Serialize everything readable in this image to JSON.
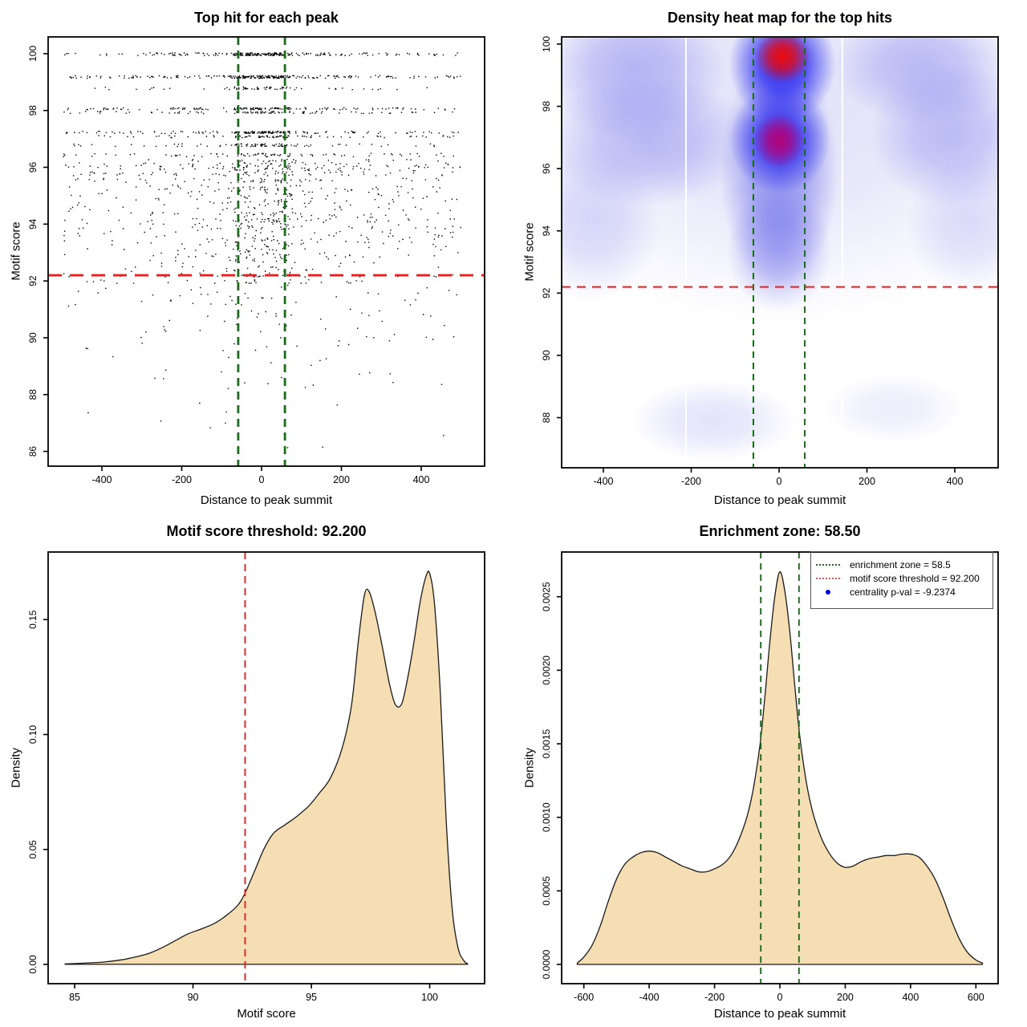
{
  "colors": {
    "background": "#ffffff",
    "point_black": "#000000",
    "threshold_red": "#e62020",
    "zone_green": "#1a6b1a",
    "density_fill_wheat": "#f5deb3",
    "curve_stroke": "#1a1a1a",
    "legend_blue": "#0000ee",
    "legend_red_dotted": "#ee5555"
  },
  "chart_data": [
    {
      "id": "top-hits-scatter",
      "type": "scatter",
      "title": "Top hit for each peak",
      "xlabel": "Distance to peak summit",
      "ylabel": "Motif score",
      "xlim": [
        -534.7,
        558.8
      ],
      "ylim": [
        85.48,
        100.59
      ],
      "xticks": [
        -400,
        -200,
        0,
        200,
        400
      ],
      "yticks": [
        86,
        88,
        90,
        92,
        94,
        96,
        98,
        100
      ],
      "grid": false,
      "motif_score_threshold": 92.2,
      "enrichment_zone": 58.5,
      "zone_line_values": [
        -58.5,
        58.5
      ],
      "point_seed": 20240817,
      "x_range_points": [
        -498,
        498
      ],
      "bands_note": "each band = [motif_score, n_points, center_fraction, y_jitter]",
      "bands": [
        [
          100,
          260,
          0.38,
          0.05
        ],
        [
          99.2,
          245,
          0.36,
          0.05
        ],
        [
          98.8,
          70,
          0.4,
          0.05
        ],
        [
          98.08,
          150,
          0.3,
          0.04
        ],
        [
          97.95,
          95,
          0.25,
          0.04
        ],
        [
          97.25,
          165,
          0.32,
          0.04
        ],
        [
          97.1,
          85,
          0.28,
          0.04
        ],
        [
          96.8,
          95,
          0.33,
          0.05
        ],
        [
          96.45,
          85,
          0.33,
          0.06
        ],
        [
          96.2,
          60,
          0.25,
          0.1
        ],
        [
          96.0,
          95,
          0.25,
          0.1
        ],
        [
          95.8,
          65,
          0.2,
          0.08
        ],
        [
          95.55,
          55,
          0.3,
          0.08
        ],
        [
          95.3,
          48,
          0.25,
          0.1
        ],
        [
          95.1,
          45,
          0.2,
          0.12
        ],
        [
          94.85,
          45,
          0.2,
          0.1
        ],
        [
          94.6,
          42,
          0.2,
          0.14
        ],
        [
          94.35,
          45,
          0.25,
          0.1
        ],
        [
          94.15,
          55,
          0.3,
          0.07
        ],
        [
          93.95,
          42,
          0.2,
          0.1
        ],
        [
          93.75,
          36,
          0.15,
          0.14
        ],
        [
          93.5,
          45,
          0.2,
          0.12
        ],
        [
          93.25,
          40,
          0.2,
          0.14
        ],
        [
          93.0,
          36,
          0.15,
          0.14
        ],
        [
          92.8,
          30,
          0.2,
          0.14
        ],
        [
          92.55,
          22,
          0.15,
          0.14
        ],
        [
          92.35,
          18,
          0.1,
          0.1
        ],
        [
          92.2,
          30,
          0.15,
          0.04
        ],
        [
          92.0,
          26,
          0.15,
          0.07
        ],
        [
          91.8,
          14,
          0.1,
          0.28
        ],
        [
          91.55,
          13,
          0.1,
          0.28
        ],
        [
          91.3,
          12,
          0.1,
          0.28
        ],
        [
          91.05,
          11,
          0.1,
          0.28
        ],
        [
          90.8,
          10,
          0.1,
          0.28
        ],
        [
          90.55,
          9,
          0.1,
          0.28
        ],
        [
          90.3,
          8,
          0.08,
          0.28
        ],
        [
          90.05,
          8,
          0.05,
          0.28
        ],
        [
          89.8,
          7,
          0.05,
          0.3
        ],
        [
          89.5,
          6,
          0.05,
          0.32
        ],
        [
          89.2,
          6,
          0.05,
          0.32
        ],
        [
          88.9,
          5,
          0.05,
          0.32
        ],
        [
          88.6,
          4,
          0.05,
          0.32
        ],
        [
          88.3,
          4,
          0.05,
          0.32
        ],
        [
          88.0,
          3,
          0,
          0.35
        ],
        [
          87.6,
          2,
          0,
          0.35
        ],
        [
          87.2,
          2,
          0,
          0.4
        ],
        [
          86.8,
          2,
          0,
          0.35
        ],
        [
          86.3,
          1,
          0,
          0.25
        ],
        [
          86.0,
          1,
          0,
          0.2
        ]
      ]
    },
    {
      "id": "density-heatmap",
      "type": "heatmap",
      "title": "Density heat map for the top hits",
      "xlabel": "Distance to peak summit",
      "ylabel": "Motif score",
      "xlim": [
        -495,
        498.6
      ],
      "ylim": [
        86.39,
        100.23
      ],
      "xticks": [
        -400,
        -200,
        0,
        200,
        400
      ],
      "yticks": [
        88,
        90,
        92,
        94,
        96,
        98,
        100
      ],
      "motif_score_threshold": 92.2,
      "zone_line_values": [
        -58.5,
        58.5
      ],
      "white_artifact_lines_x": [
        -212,
        144
      ],
      "blob_note": "each blob = [x, y, rx_data_units, ry_data_units, hex, alpha]",
      "washes": [
        [
          0,
          98,
          700,
          7,
          "#c3c3f3",
          0.5
        ],
        [
          -330,
          99.2,
          210,
          2.3,
          "#8787ee",
          0.55
        ],
        [
          -300,
          96.9,
          240,
          2.1,
          "#8787ee",
          0.5
        ],
        [
          330,
          99.3,
          210,
          1.9,
          "#8787ee",
          0.5
        ],
        [
          395,
          97.1,
          190,
          2.3,
          "#8787ee",
          0.5
        ],
        [
          -430,
          94.3,
          160,
          2.6,
          "#9696f0",
          0.35
        ],
        [
          440,
          94.2,
          150,
          2.3,
          "#9696f0",
          0.3
        ],
        [
          -150,
          87.9,
          190,
          1.3,
          "#a0a0f2",
          0.3
        ],
        [
          260,
          88.3,
          160,
          1.1,
          "#aaaaf4",
          0.22
        ],
        [
          0,
          93.4,
          120,
          2.0,
          "#6e6eeb",
          0.45
        ],
        [
          0,
          95.9,
          135,
          3.8,
          "#5555e8",
          0.6
        ]
      ],
      "hotspots": [
        [
          8,
          99.35,
          122,
          1.9,
          "#2323f0",
          0.97
        ],
        [
          2,
          96.95,
          115,
          1.75,
          "#2d2df0",
          0.92
        ],
        [
          0,
          96.9,
          57,
          0.88,
          "#b90073",
          0.95
        ],
        [
          8,
          99.6,
          62,
          0.85,
          "#ee0a0a",
          1
        ]
      ]
    },
    {
      "id": "motif-score-density",
      "type": "density",
      "title": "Motif score threshold: 92.200",
      "xlabel": "Motif score",
      "ylabel": "Density",
      "xlim": [
        83.88,
        102.32
      ],
      "ylim": [
        -0.0084,
        0.1794
      ],
      "xticks": [
        85,
        90,
        95,
        100
      ],
      "ytick_values": [
        0,
        0.05,
        0.1,
        0.15
      ],
      "ytick_labels": [
        "0.00",
        "0.05",
        "0.10",
        "0.15"
      ],
      "threshold_line_value": 92.2,
      "threshold_line_orient": "vertical",
      "curve": [
        [
          84.6,
          0.0002
        ],
        [
          85.3,
          0.0005
        ],
        [
          86.2,
          0.001
        ],
        [
          87.0,
          0.002
        ],
        [
          87.6,
          0.0033
        ],
        [
          88.2,
          0.005
        ],
        [
          88.8,
          0.0078
        ],
        [
          89.3,
          0.0106
        ],
        [
          89.8,
          0.0133
        ],
        [
          90.3,
          0.0152
        ],
        [
          90.9,
          0.0178
        ],
        [
          91.4,
          0.0212
        ],
        [
          91.9,
          0.0258
        ],
        [
          92.2,
          0.031
        ],
        [
          92.6,
          0.0405
        ],
        [
          93.0,
          0.0502
        ],
        [
          93.4,
          0.057
        ],
        [
          93.9,
          0.0608
        ],
        [
          94.4,
          0.0645
        ],
        [
          94.9,
          0.069
        ],
        [
          95.3,
          0.074
        ],
        [
          95.8,
          0.081
        ],
        [
          96.3,
          0.094
        ],
        [
          96.7,
          0.113
        ],
        [
          97.0,
          0.142
        ],
        [
          97.25,
          0.161
        ],
        [
          97.45,
          0.162
        ],
        [
          97.7,
          0.153
        ],
        [
          98.0,
          0.138
        ],
        [
          98.3,
          0.122
        ],
        [
          98.55,
          0.113
        ],
        [
          98.8,
          0.113
        ],
        [
          99.0,
          0.121
        ],
        [
          99.3,
          0.138
        ],
        [
          99.6,
          0.158
        ],
        [
          99.85,
          0.169
        ],
        [
          100.0,
          0.17
        ],
        [
          100.2,
          0.157
        ],
        [
          100.45,
          0.118
        ],
        [
          100.7,
          0.062
        ],
        [
          100.95,
          0.024
        ],
        [
          101.2,
          0.007
        ],
        [
          101.45,
          0.0015
        ],
        [
          101.6,
          0.0003
        ]
      ]
    },
    {
      "id": "summit-distance-density",
      "type": "density",
      "title": "Enrichment zone: 58.50",
      "xlabel": "Distance to peak summit",
      "ylabel": "Density",
      "xlim": [
        -668,
        668
      ],
      "ylim": [
        -0.000131,
        0.002804
      ],
      "xticks": [
        -600,
        -400,
        -200,
        0,
        200,
        400,
        600
      ],
      "ytick_values": [
        0,
        0.0005,
        0.001,
        0.0015,
        0.002,
        0.0025
      ],
      "ytick_labels": [
        "0.0000",
        "0.0005",
        "0.0010",
        "0.0015",
        "0.0020",
        "0.0025"
      ],
      "zone_line_values": [
        -58.5,
        58.5
      ],
      "legend": [
        {
          "label": "enrichment zone = 58.5",
          "glyph": "dotted-line-green",
          "color": "#1a6b1a"
        },
        {
          "label": "motif score threshold = 92.200",
          "glyph": "dotted-line-red",
          "color": "#ee5555"
        },
        {
          "label": "centrality p-val = -9.2374",
          "glyph": "blue-dot",
          "color": "#0000ee"
        }
      ],
      "curve": [
        [
          -620,
          1e-05
        ],
        [
          -600,
          5e-05
        ],
        [
          -575,
          0.00013
        ],
        [
          -550,
          0.00026
        ],
        [
          -525,
          0.00043
        ],
        [
          -500,
          0.00058
        ],
        [
          -475,
          0.00068
        ],
        [
          -450,
          0.00073
        ],
        [
          -425,
          0.00076
        ],
        [
          -400,
          0.00077
        ],
        [
          -375,
          0.00076
        ],
        [
          -350,
          0.00073
        ],
        [
          -325,
          0.0007
        ],
        [
          -300,
          0.00067
        ],
        [
          -275,
          0.00065
        ],
        [
          -250,
          0.00063
        ],
        [
          -225,
          0.00063
        ],
        [
          -200,
          0.00065
        ],
        [
          -175,
          0.00068
        ],
        [
          -150,
          0.00074
        ],
        [
          -125,
          0.00085
        ],
        [
          -100,
          0.00101
        ],
        [
          -80,
          0.00121
        ],
        [
          -60,
          0.00151
        ],
        [
          -45,
          0.00184
        ],
        [
          -30,
          0.00221
        ],
        [
          -15,
          0.00251
        ],
        [
          0,
          0.00267
        ],
        [
          15,
          0.00254
        ],
        [
          30,
          0.00227
        ],
        [
          45,
          0.00191
        ],
        [
          60,
          0.00157
        ],
        [
          80,
          0.00125
        ],
        [
          100,
          0.00104
        ],
        [
          125,
          0.00087
        ],
        [
          150,
          0.00076
        ],
        [
          175,
          0.00069
        ],
        [
          200,
          0.00066
        ],
        [
          225,
          0.00067
        ],
        [
          250,
          0.0007
        ],
        [
          275,
          0.00072
        ],
        [
          300,
          0.00073
        ],
        [
          325,
          0.00074
        ],
        [
          350,
          0.00074
        ],
        [
          375,
          0.00075
        ],
        [
          400,
          0.00075
        ],
        [
          425,
          0.00073
        ],
        [
          450,
          0.00067
        ],
        [
          475,
          0.00058
        ],
        [
          500,
          0.00045
        ],
        [
          525,
          0.0003
        ],
        [
          550,
          0.00017
        ],
        [
          575,
          8e-05
        ],
        [
          600,
          3e-05
        ],
        [
          620,
          1e-05
        ]
      ]
    }
  ]
}
